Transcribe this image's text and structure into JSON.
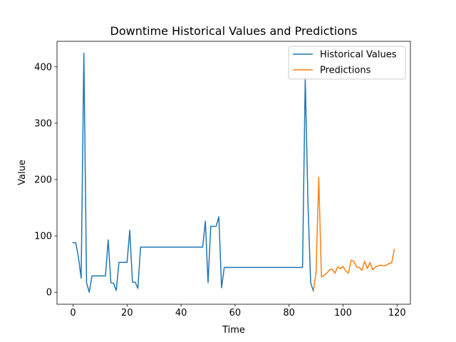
{
  "chart_data": {
    "type": "line",
    "title": "Downtime Historical Values and Predictions",
    "xlabel": "Time",
    "ylabel": "Value",
    "xlim": [
      -5.95,
      124.95
    ],
    "ylim": [
      -21.2,
      445.2
    ],
    "xticks": [
      0,
      20,
      40,
      60,
      80,
      100,
      120
    ],
    "yticks": [
      0,
      100,
      200,
      300,
      400
    ],
    "grid": false,
    "legend": "top-right",
    "series": [
      {
        "name": "Historical Values",
        "color": "#1f77b4",
        "x": [
          0,
          1,
          2,
          3,
          4,
          5,
          6,
          7,
          8,
          9,
          10,
          11,
          12,
          13,
          14,
          15,
          16,
          17,
          18,
          19,
          20,
          21,
          22,
          23,
          24,
          25,
          26,
          27,
          28,
          29,
          30,
          31,
          32,
          33,
          34,
          35,
          36,
          37,
          38,
          39,
          40,
          41,
          42,
          43,
          44,
          45,
          46,
          47,
          48,
          49,
          50,
          51,
          52,
          53,
          54,
          55,
          56,
          57,
          58,
          59,
          60,
          61,
          62,
          63,
          64,
          65,
          66,
          67,
          68,
          69,
          70,
          71,
          72,
          73,
          74,
          75,
          76,
          77,
          78,
          79,
          80,
          81,
          82,
          83,
          84,
          85,
          86,
          87,
          88,
          89
        ],
        "y": [
          88,
          88,
          62,
          25,
          424,
          17,
          0,
          29,
          29,
          29,
          29,
          29,
          29,
          93,
          17,
          16,
          3,
          53,
          53,
          53,
          53,
          110,
          18,
          18,
          7,
          80,
          80,
          80,
          80,
          80,
          80,
          80,
          80,
          80,
          80,
          80,
          80,
          80,
          80,
          80,
          80,
          80,
          80,
          80,
          80,
          80,
          80,
          80,
          80,
          126,
          17,
          117,
          117,
          117,
          134,
          8,
          44,
          44,
          44,
          44,
          44,
          44,
          44,
          44,
          44,
          44,
          44,
          44,
          44,
          44,
          44,
          44,
          44,
          44,
          44,
          44,
          44,
          44,
          44,
          44,
          44,
          44,
          44,
          44,
          44,
          44,
          381,
          160,
          17,
          2
        ]
      },
      {
        "name": "Predictions",
        "color": "#ff7f0e",
        "x": [
          89,
          90,
          91,
          92,
          93,
          94,
          95,
          96,
          97,
          98,
          99,
          100,
          101,
          102,
          103,
          104,
          105,
          106,
          107,
          108,
          109,
          110,
          111,
          112,
          113,
          114,
          115,
          116,
          117,
          118,
          119
        ],
        "y": [
          2,
          35,
          204,
          27,
          30,
          34,
          40,
          41,
          34,
          45,
          42,
          46,
          38,
          34,
          57,
          55,
          45,
          44,
          39,
          55,
          42,
          53,
          40,
          45,
          47,
          48,
          47,
          48,
          51,
          52,
          76
        ]
      }
    ]
  }
}
